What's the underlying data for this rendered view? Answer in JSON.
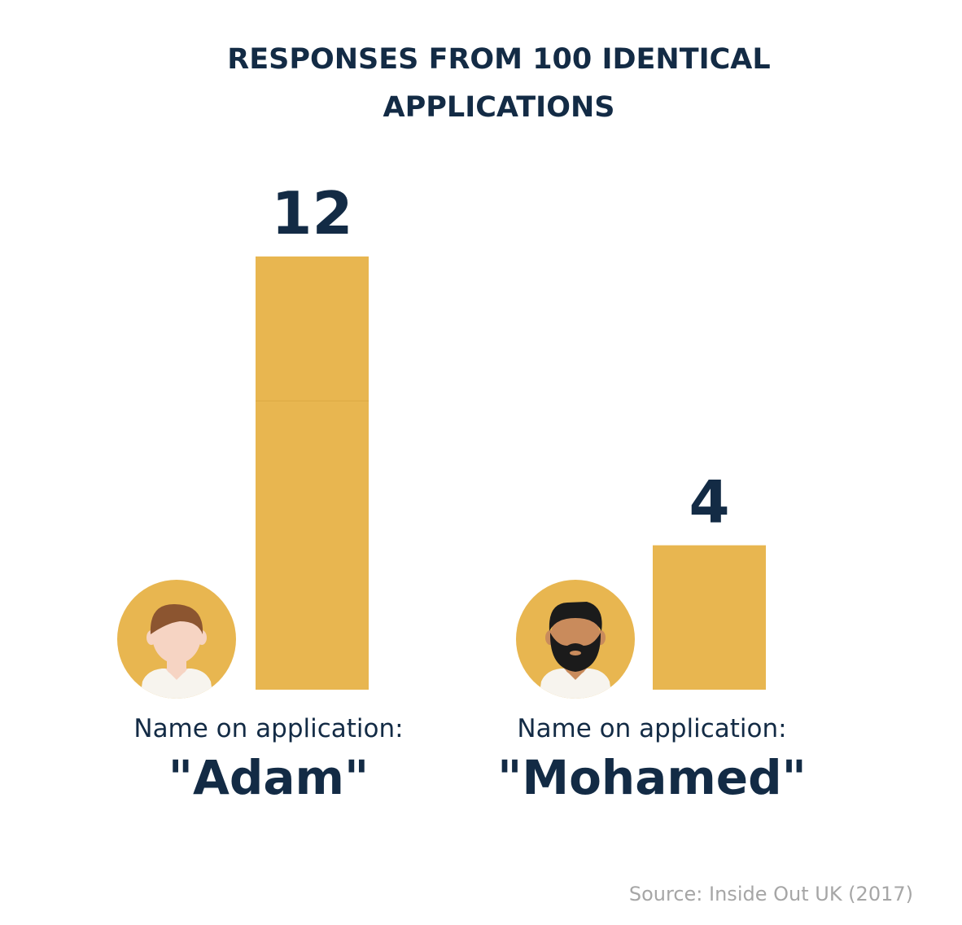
{
  "chart_data": {
    "type": "bar",
    "title_lines": [
      "RESPONSES FROM 100 IDENTICAL",
      "APPLICATIONS"
    ],
    "categories": [
      "\"Adam\"",
      "\"Mohamed\""
    ],
    "category_prefix": "Name on application:",
    "values": [
      12,
      4
    ],
    "ylim": [
      0,
      12
    ],
    "grid": false,
    "legend": "none",
    "source": "Source: Inside Out UK (2017)"
  },
  "avatars": [
    {
      "icon": "man-light-skin-brown-hair-icon"
    },
    {
      "icon": "man-dark-skin-black-beard-icon"
    }
  ],
  "colors": {
    "bar": "#E8B650",
    "bar_seam": "#DDAA44",
    "text_dark": "#132B45",
    "source_gray": "#A6A6A6",
    "avatar_bg": "#E8B650",
    "shirt": "#F7F4EE",
    "skin_light": "#F6D4C3",
    "hair_brown": "#8C5530",
    "skin_dark": "#C98B5C",
    "hair_black": "#1B1B1B"
  }
}
